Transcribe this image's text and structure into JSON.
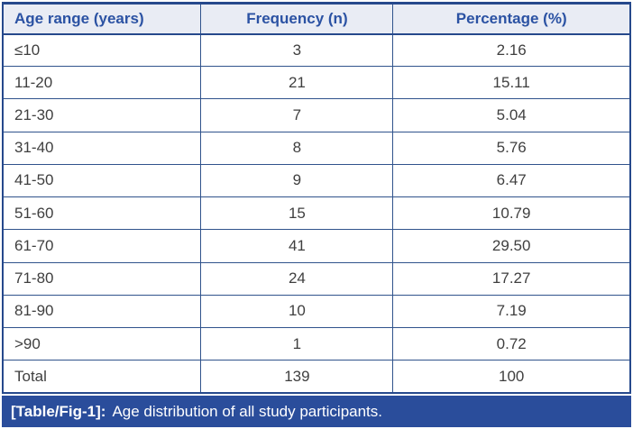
{
  "chart_data": {
    "type": "table",
    "title": "[Table/Fig-1]: Age distribution of all study participants.",
    "columns": [
      "Age range (years)",
      "Frequency (n)",
      "Percentage (%)"
    ],
    "rows": [
      [
        "≤10",
        "3",
        "2.16"
      ],
      [
        "11-20",
        "21",
        "15.11"
      ],
      [
        "21-30",
        "7",
        "5.04"
      ],
      [
        "31-40",
        "8",
        "5.76"
      ],
      [
        "41-50",
        "9",
        "6.47"
      ],
      [
        "51-60",
        "15",
        "10.79"
      ],
      [
        "61-70",
        "41",
        "29.50"
      ],
      [
        "71-80",
        "24",
        "17.27"
      ],
      [
        "81-90",
        "10",
        "7.19"
      ],
      [
        ">90",
        "1",
        "0.72"
      ],
      [
        "Total",
        "139",
        "100"
      ]
    ]
  },
  "table": {
    "headers": {
      "age": "Age range (years)",
      "frequency": "Frequency (n)",
      "percentage": "Percentage (%)"
    },
    "rows": [
      [
        "≤10",
        "3",
        "2.16"
      ],
      [
        "11-20",
        "21",
        "15.11"
      ],
      [
        "21-30",
        "7",
        "5.04"
      ],
      [
        "31-40",
        "8",
        "5.76"
      ],
      [
        "41-50",
        "9",
        "6.47"
      ],
      [
        "51-60",
        "15",
        "10.79"
      ],
      [
        "61-70",
        "41",
        "29.50"
      ],
      [
        "71-80",
        "24",
        "17.27"
      ],
      [
        "81-90",
        "10",
        "7.19"
      ],
      [
        ">90",
        "1",
        "0.72"
      ],
      [
        "Total",
        "139",
        "100"
      ]
    ]
  },
  "caption": {
    "tag": "[Table/Fig-1]:",
    "text": "Age distribution of all study participants."
  },
  "colors": {
    "caption_bar_bg": "#2a4d9b",
    "caption_text": "#ffffff",
    "header_bg": "#e9ecf4",
    "header_text": "#2b52a3",
    "border": "#30538c",
    "outer_border": "#26498c",
    "body_text": "#3f3f3f"
  }
}
